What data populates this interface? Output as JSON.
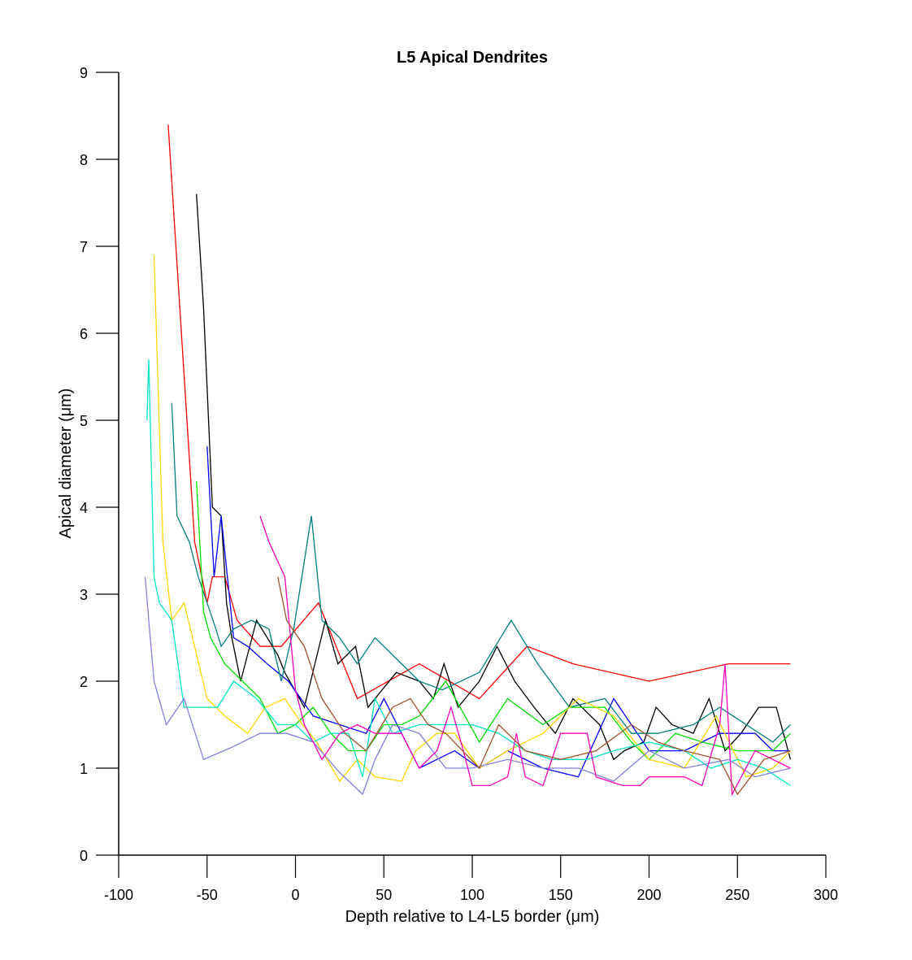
{
  "chart_data": {
    "type": "line",
    "title": "L5 Apical Dendrites",
    "xlabel": "Depth relative to L4-L5 border (μm)",
    "ylabel": "Apical diameter (μm)",
    "xlim": [
      -100,
      300
    ],
    "ylim": [
      0,
      9
    ],
    "xticks": [
      -100,
      -50,
      0,
      50,
      100,
      150,
      200,
      250,
      300
    ],
    "yticks": [
      0,
      1,
      2,
      3,
      4,
      5,
      6,
      7,
      8,
      9
    ],
    "xtick_labels": [
      "-100",
      "-50",
      "0",
      "50",
      "100",
      "150",
      "200",
      "250",
      "300"
    ],
    "ytick_labels": [
      "0",
      "1",
      "2",
      "3",
      "4",
      "5",
      "6",
      "7",
      "8",
      "9"
    ],
    "grid": false,
    "legend": "none",
    "series": [
      {
        "color": "#ff0000",
        "x": [
          -72,
          -57,
          -50,
          -47,
          -40,
          -33,
          -20,
          -8,
          13,
          35,
          70,
          104,
          131,
          157,
          200,
          245,
          280
        ],
        "y": [
          8.4,
          3.6,
          2.9,
          3.2,
          3.2,
          2.7,
          2.4,
          2.4,
          2.9,
          1.8,
          2.2,
          1.8,
          2.4,
          2.2,
          2.0,
          2.2,
          2.2
        ]
      },
      {
        "color": "#000000",
        "x": [
          -56,
          -52,
          -47,
          -42,
          -39,
          -36,
          -31,
          -22,
          -10,
          -6,
          5,
          11,
          17,
          24,
          34,
          41,
          49,
          57,
          70,
          78,
          84,
          92,
          104,
          114,
          124,
          135,
          147,
          157,
          172,
          180,
          186,
          197,
          204,
          213,
          225,
          234,
          243,
          252,
          262,
          272,
          280
        ],
        "y": [
          7.6,
          6.3,
          4.0,
          3.9,
          2.9,
          2.5,
          2.0,
          2.7,
          2.3,
          2.1,
          1.7,
          2.2,
          2.7,
          2.2,
          2.4,
          1.7,
          1.9,
          2.1,
          2.0,
          1.8,
          2.2,
          1.7,
          2.0,
          2.4,
          2.0,
          1.7,
          1.4,
          1.8,
          1.5,
          1.1,
          1.2,
          1.3,
          1.7,
          1.5,
          1.4,
          1.8,
          1.2,
          1.4,
          1.7,
          1.7,
          1.1
        ]
      },
      {
        "color": "#0000ff",
        "x": [
          -50,
          -46,
          -42,
          -35,
          -27,
          -16,
          -4,
          10,
          25,
          40,
          50,
          70,
          80,
          90,
          104,
          120,
          140,
          160,
          180,
          200,
          220,
          240,
          260,
          270,
          280
        ],
        "y": [
          4.7,
          3.2,
          3.9,
          2.5,
          2.4,
          2.2,
          2.0,
          1.6,
          1.5,
          1.4,
          1.8,
          1.0,
          1.1,
          1.2,
          1.0,
          1.2,
          1.0,
          0.9,
          1.8,
          1.2,
          1.2,
          1.4,
          1.4,
          1.2,
          1.2
        ]
      },
      {
        "color": "#008080",
        "x": [
          -70,
          -67,
          -60,
          -55,
          -50,
          -45,
          -42,
          -35,
          -25,
          -15,
          -8,
          -1,
          9,
          15,
          25,
          35,
          45,
          55,
          70,
          83,
          104,
          122,
          137,
          155,
          175,
          190,
          205,
          225,
          240,
          255,
          270,
          280
        ],
        "y": [
          5.2,
          3.9,
          3.6,
          3.2,
          2.9,
          2.6,
          2.4,
          2.6,
          2.7,
          2.6,
          2.0,
          2.6,
          3.9,
          2.7,
          2.5,
          2.2,
          2.5,
          2.3,
          2.0,
          1.9,
          2.1,
          2.7,
          2.2,
          1.7,
          1.8,
          1.4,
          1.4,
          1.5,
          1.7,
          1.5,
          1.3,
          1.5
        ]
      },
      {
        "color": "#00e000",
        "x": [
          -56,
          -52,
          -48,
          -40,
          -30,
          -20,
          -10,
          0,
          10,
          20,
          30,
          40,
          50,
          60,
          70,
          85,
          104,
          120,
          140,
          155,
          175,
          190,
          200,
          215,
          230,
          250,
          270,
          280
        ],
        "y": [
          4.3,
          2.8,
          2.5,
          2.2,
          2.0,
          1.8,
          1.4,
          1.5,
          1.7,
          1.4,
          1.2,
          1.2,
          1.5,
          1.5,
          1.6,
          2.0,
          1.3,
          1.8,
          1.5,
          1.7,
          1.7,
          1.3,
          1.1,
          1.4,
          1.3,
          1.2,
          1.2,
          1.4
        ]
      },
      {
        "color": "#ffd700",
        "x": [
          -80,
          -75,
          -70,
          -63,
          -50,
          -40,
          -27,
          -17,
          -6,
          4,
          12,
          25,
          35,
          45,
          60,
          68,
          80,
          90,
          104,
          120,
          140,
          160,
          180,
          200,
          220,
          238,
          255,
          270,
          280
        ],
        "y": [
          6.9,
          3.6,
          2.7,
          2.9,
          1.8,
          1.6,
          1.4,
          1.7,
          1.8,
          1.5,
          1.3,
          0.85,
          1.1,
          0.9,
          0.85,
          1.2,
          1.4,
          1.4,
          1.0,
          1.2,
          1.4,
          1.8,
          1.6,
          1.1,
          1.0,
          1.6,
          0.9,
          1.0,
          1.2
        ]
      },
      {
        "color": "#00e5c8",
        "x": [
          -84,
          -83,
          -80,
          -77,
          -70,
          -63,
          -55,
          -44,
          -35,
          -22,
          -10,
          0,
          10,
          20,
          30,
          38,
          45,
          55,
          70,
          85,
          100,
          115,
          130,
          145,
          165,
          180,
          200,
          220,
          235,
          250,
          265,
          280
        ],
        "y": [
          5.0,
          5.7,
          3.2,
          2.9,
          2.7,
          1.7,
          1.7,
          1.7,
          2.0,
          1.8,
          1.5,
          1.5,
          1.3,
          1.4,
          1.4,
          0.9,
          1.8,
          1.4,
          1.5,
          1.5,
          1.5,
          1.4,
          1.2,
          1.1,
          1.1,
          1.2,
          1.3,
          1.2,
          1.0,
          1.1,
          1.0,
          0.8
        ]
      },
      {
        "color": "#8080e0",
        "x": [
          -85,
          -83,
          -80,
          -73,
          -63,
          -52,
          -35,
          -20,
          -5,
          10,
          25,
          38,
          45,
          55,
          70,
          85,
          100,
          120,
          140,
          160,
          180,
          200,
          220,
          245,
          260,
          280
        ],
        "y": [
          3.2,
          2.7,
          2.0,
          1.5,
          1.8,
          1.1,
          1.25,
          1.4,
          1.4,
          1.3,
          0.95,
          0.7,
          1.1,
          1.5,
          1.4,
          1.0,
          1.0,
          1.1,
          1.0,
          1.0,
          0.85,
          1.2,
          1.0,
          1.1,
          0.9,
          1.0
        ]
      },
      {
        "color": "#ff00c0",
        "x": [
          -20,
          -15,
          -6,
          0,
          5,
          15,
          25,
          35,
          45,
          55,
          60,
          70,
          80,
          88,
          95,
          100,
          110,
          120,
          125,
          130,
          140,
          150,
          155,
          165,
          170,
          185,
          195,
          200,
          220,
          230,
          240,
          243,
          247,
          260,
          270,
          280
        ],
        "y": [
          3.9,
          3.6,
          3.2,
          1.9,
          1.5,
          1.1,
          1.4,
          1.5,
          1.4,
          1.4,
          1.4,
          1.0,
          1.2,
          1.7,
          1.2,
          0.8,
          0.8,
          0.9,
          1.4,
          0.9,
          0.8,
          1.4,
          1.4,
          1.4,
          0.9,
          0.8,
          0.8,
          0.9,
          0.9,
          0.8,
          1.5,
          2.2,
          0.7,
          1.2,
          1.1,
          1.0
        ]
      },
      {
        "color": "#a0522d",
        "x": [
          -10,
          -5,
          5,
          15,
          28,
          40,
          55,
          65,
          75,
          85,
          104,
          115,
          130,
          150,
          170,
          190,
          205,
          220,
          240,
          250,
          265,
          280
        ],
        "y": [
          3.2,
          2.7,
          2.4,
          1.8,
          1.4,
          1.2,
          1.7,
          1.8,
          1.5,
          1.4,
          1.0,
          1.5,
          1.2,
          1.1,
          1.2,
          1.5,
          1.3,
          1.2,
          1.1,
          0.7,
          1.1,
          1.2
        ]
      }
    ]
  }
}
